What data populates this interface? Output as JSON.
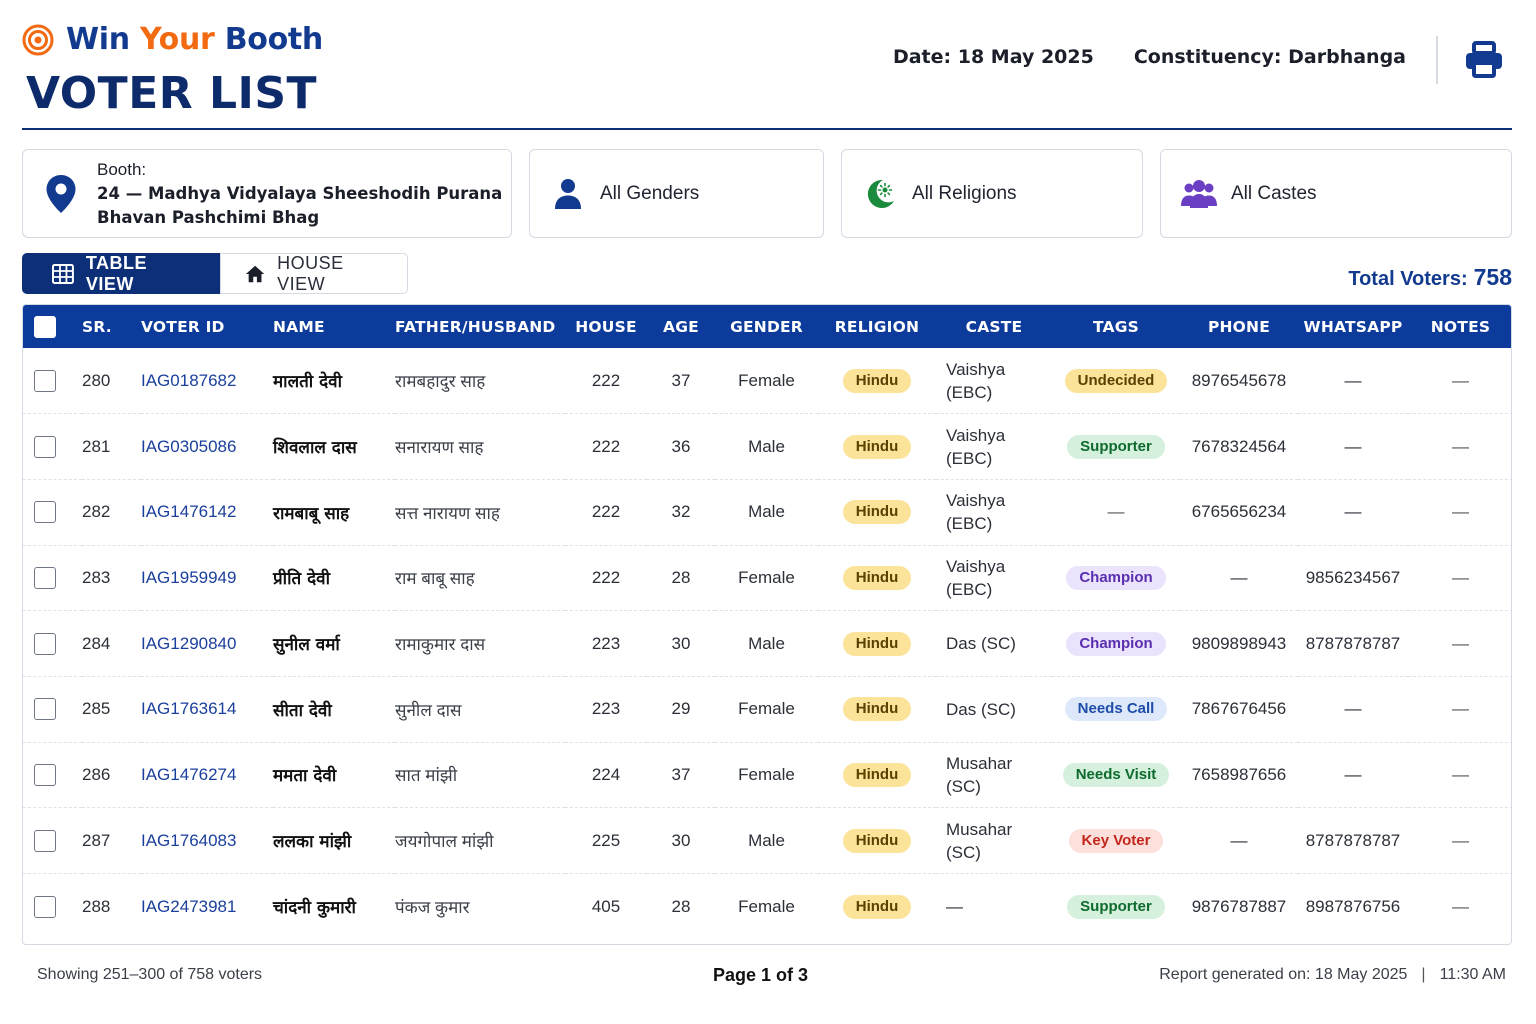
{
  "brand": {
    "word1": "Win",
    "word2": "Your",
    "word3": "Booth"
  },
  "page_title": "VOTER LIST",
  "meta": {
    "date": "Date: 18 May 2025",
    "constituency": "Constituency: Darbhanga"
  },
  "filters": {
    "booth_label": "Booth:",
    "booth_line1": "24 — Madhya Vidyalaya Sheeshodih Purana",
    "booth_line2": "Bhavan Pashchimi Bhag",
    "gender": "All Genders",
    "religion": "All Religions",
    "caste": "All Castes"
  },
  "views": {
    "table": "TABLE VIEW",
    "house": "HOUSE VIEW"
  },
  "total": {
    "label": "Total Voters:",
    "value": "758"
  },
  "columns": {
    "sr": "SR.",
    "voter_id": "VOTER ID",
    "name": "NAME",
    "father": "FATHER/HUSBAND",
    "house": "HOUSE",
    "age": "AGE",
    "gender": "GENDER",
    "religion": "RELIGION",
    "caste": "CASTE",
    "tags": "TAGS",
    "phone": "PHONE",
    "whatsapp": "WHATSAPP",
    "notes": "NOTES"
  },
  "rows": [
    {
      "sr": "280",
      "voter_id": "IAG0187682",
      "name": "मालती देवी",
      "father": "रामबहादुर साह",
      "house": "222",
      "age": "37",
      "gender": "Female",
      "religion": "Hindu",
      "caste1": "Vaishya",
      "caste2": "(EBC)",
      "tag": "Undecided",
      "tag_style": "undecided",
      "phone": "8976545678",
      "whatsapp": "—",
      "notes": "—"
    },
    {
      "sr": "281",
      "voter_id": "IAG0305086",
      "name": "शिवलाल दास",
      "father": "सनारायण साह",
      "house": "222",
      "age": "36",
      "gender": "Male",
      "religion": "Hindu",
      "caste1": "Vaishya",
      "caste2": "(EBC)",
      "tag": "Supporter",
      "tag_style": "supporter",
      "phone": "7678324564",
      "whatsapp": "—",
      "notes": "—"
    },
    {
      "sr": "282",
      "voter_id": "IAG1476142",
      "name": "रामबाबू साह",
      "father": "सत्त नारायण साह",
      "house": "222",
      "age": "32",
      "gender": "Male",
      "religion": "Hindu",
      "caste1": "Vaishya",
      "caste2": "(EBC)",
      "tag": "—",
      "tag_style": "none",
      "phone": "6765656234",
      "whatsapp": "—",
      "notes": "—"
    },
    {
      "sr": "283",
      "voter_id": "IAG1959949",
      "name": "प्रीति देवी",
      "father": "राम बाबू साह",
      "house": "222",
      "age": "28",
      "gender": "Female",
      "religion": "Hindu",
      "caste1": "Vaishya",
      "caste2": "(EBC)",
      "tag": "Champion",
      "tag_style": "champion",
      "phone": "—",
      "whatsapp": "9856234567",
      "notes": "—"
    },
    {
      "sr": "284",
      "voter_id": "IAG1290840",
      "name": "सुनील वर्मा",
      "father": "रामाकुमार दास",
      "house": "223",
      "age": "30",
      "gender": "Male",
      "religion": "Hindu",
      "caste1": "Das (SC)",
      "caste2": "",
      "tag": "Champion",
      "tag_style": "champion",
      "phone": "9809898943",
      "whatsapp": "8787878787",
      "notes": "—"
    },
    {
      "sr": "285",
      "voter_id": "IAG1763614",
      "name": "सीता देवी",
      "father": "सुनील दास",
      "house": "223",
      "age": "29",
      "gender": "Female",
      "religion": "Hindu",
      "caste1": "Das (SC)",
      "caste2": "",
      "tag": "Needs Call",
      "tag_style": "needscall",
      "phone": "7867676456",
      "whatsapp": "—",
      "notes": "—"
    },
    {
      "sr": "286",
      "voter_id": "IAG1476274",
      "name": "ममता देवी",
      "father": "सात मांझी",
      "house": "224",
      "age": "37",
      "gender": "Female",
      "religion": "Hindu",
      "caste1": "Musahar",
      "caste2": "(SC)",
      "tag": "Needs Visit",
      "tag_style": "needsvisit",
      "phone": "7658987656",
      "whatsapp": "—",
      "notes": "—"
    },
    {
      "sr": "287",
      "voter_id": "IAG1764083",
      "name": "ललका मांझी",
      "father": "जयगोपाल मांझी",
      "house": "225",
      "age": "30",
      "gender": "Male",
      "religion": "Hindu",
      "caste1": "Musahar",
      "caste2": "(SC)",
      "tag": "Key Voter",
      "tag_style": "keyvoter",
      "phone": "—",
      "whatsapp": "8787878787",
      "notes": "—"
    },
    {
      "sr": "288",
      "voter_id": "IAG2473981",
      "name": "चांदनी कुमारी",
      "father": "पंकज कुमार",
      "house": "405",
      "age": "28",
      "gender": "Female",
      "religion": "Hindu",
      "caste1": "—",
      "caste2": "",
      "tag": "Supporter",
      "tag_style": "supporter",
      "phone": "9876787887",
      "whatsapp": "8987876756",
      "notes": "—"
    }
  ],
  "footer": {
    "showing": "Showing 251–300 of 758 voters",
    "page": "Page 1 of 3",
    "report": "Report generated on: 18 May 2025",
    "separator": "|",
    "time": "11:30 AM"
  },
  "colors": {
    "navy": "#0d2f78",
    "header_blue": "#0d3b9c",
    "accent_orange": "#f26a12"
  },
  "icons": {
    "logo": "target-icon",
    "print": "printer-icon",
    "booth": "map-pin-icon",
    "gender": "user-icon",
    "religion": "crescent-star-icon",
    "caste": "users-icon",
    "table": "grid-icon",
    "house": "home-icon"
  }
}
